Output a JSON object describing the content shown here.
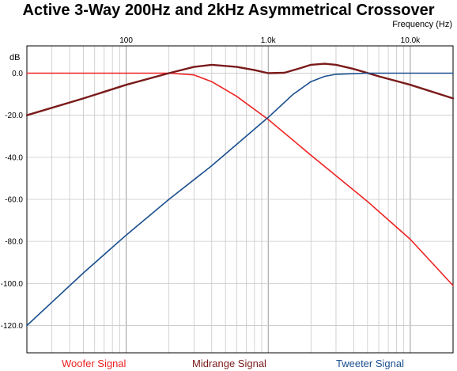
{
  "title": "Active 3-Way 200Hz and 2kHz Asymmetrical Crossover",
  "x_axis_label": "Frequency  (Hz)",
  "y_axis_label": "dB",
  "colors": {
    "woofer": "#ee2222",
    "midrange": "#7a1a1a",
    "tweeter": "#1a4f8f",
    "grid": "#9a9a9a",
    "grid_dense": "#c8c8c8"
  },
  "chart_data": {
    "type": "line",
    "title": "Active 3-Way 200Hz and 2kHz Asymmetrical Crossover",
    "xlabel": "Frequency  (Hz)",
    "ylabel": "dB",
    "xscale": "log",
    "xlim": [
      20,
      20000
    ],
    "ylim": [
      -133,
      13
    ],
    "grid": true,
    "legend": "bottom",
    "x_ticks": [
      {
        "value": 100,
        "label": "100"
      },
      {
        "value": 1000,
        "label": "1.0k"
      },
      {
        "value": 10000,
        "label": "10.0k"
      }
    ],
    "y_ticks": [
      {
        "value": 0,
        "label": "0.0"
      },
      {
        "value": -20,
        "label": "-20.0"
      },
      {
        "value": -40,
        "label": "-40.0"
      },
      {
        "value": -60,
        "label": "-60.0"
      },
      {
        "value": -80,
        "label": "-80.0"
      },
      {
        "value": -100,
        "label": "-100.0"
      },
      {
        "value": -120,
        "label": "-120.0"
      }
    ],
    "series": [
      {
        "name": "Woofer Signal",
        "color": "#ee2222",
        "points": [
          [
            20,
            0
          ],
          [
            100,
            0
          ],
          [
            200,
            0
          ],
          [
            300,
            -0.8
          ],
          [
            400,
            -4
          ],
          [
            600,
            -11
          ],
          [
            1000,
            -22
          ],
          [
            2000,
            -39
          ],
          [
            5000,
            -61
          ],
          [
            10000,
            -79
          ],
          [
            20000,
            -101
          ]
        ]
      },
      {
        "name": "Midrange Signal",
        "color": "#7a1a1a",
        "points": [
          [
            20,
            -20
          ],
          [
            50,
            -12
          ],
          [
            100,
            -5.5
          ],
          [
            200,
            0
          ],
          [
            300,
            3
          ],
          [
            400,
            4
          ],
          [
            600,
            3
          ],
          [
            800,
            1.5
          ],
          [
            1000,
            0
          ],
          [
            1300,
            0.2
          ],
          [
            1700,
            2.5
          ],
          [
            2000,
            4
          ],
          [
            2500,
            4.5
          ],
          [
            3000,
            4
          ],
          [
            4000,
            2
          ],
          [
            6000,
            -1.5
          ],
          [
            10000,
            -5.5
          ],
          [
            20000,
            -12
          ]
        ]
      },
      {
        "name": "Tweeter Signal",
        "color": "#1a4f8f",
        "points": [
          [
            20,
            -120
          ],
          [
            50,
            -95
          ],
          [
            100,
            -77
          ],
          [
            200,
            -60
          ],
          [
            400,
            -44
          ],
          [
            1000,
            -21
          ],
          [
            1500,
            -10
          ],
          [
            2000,
            -4
          ],
          [
            2500,
            -1.5
          ],
          [
            3000,
            -0.5
          ],
          [
            5000,
            0
          ],
          [
            20000,
            0
          ]
        ]
      }
    ]
  }
}
